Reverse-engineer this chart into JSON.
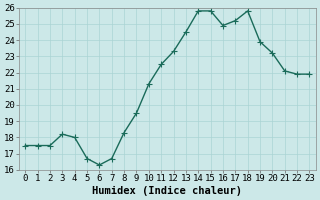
{
  "x": [
    0,
    1,
    2,
    3,
    4,
    5,
    6,
    7,
    8,
    9,
    10,
    11,
    12,
    13,
    14,
    15,
    16,
    17,
    18,
    19,
    20,
    21,
    22,
    23
  ],
  "y": [
    17.5,
    17.5,
    17.5,
    18.2,
    18.0,
    16.7,
    16.3,
    16.7,
    18.3,
    19.5,
    21.3,
    22.5,
    23.3,
    24.5,
    25.8,
    25.8,
    24.9,
    25.2,
    25.8,
    23.9,
    23.2,
    22.1,
    21.9,
    21.9
  ],
  "line_color": "#1a6b5a",
  "marker": "+",
  "marker_size": 4,
  "marker_color": "#1a6b5a",
  "bg_color": "#cce8e8",
  "grid_color": "#aad4d4",
  "xlabel": "Humidex (Indice chaleur)",
  "ylim": [
    16,
    26
  ],
  "xlim": [
    -0.5,
    23.5
  ],
  "yticks": [
    16,
    17,
    18,
    19,
    20,
    21,
    22,
    23,
    24,
    25,
    26
  ],
  "xticks": [
    0,
    1,
    2,
    3,
    4,
    5,
    6,
    7,
    8,
    9,
    10,
    11,
    12,
    13,
    14,
    15,
    16,
    17,
    18,
    19,
    20,
    21,
    22,
    23
  ],
  "tick_fontsize": 6.5,
  "xlabel_fontsize": 7.5,
  "line_width": 1.0
}
